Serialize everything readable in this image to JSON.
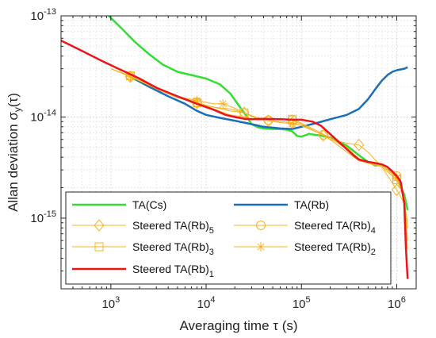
{
  "chart_data": {
    "type": "line",
    "xscale": "log",
    "yscale": "log",
    "xlim": [
      300,
      1600000
    ],
    "ylim": [
      2e-16,
      1e-13
    ],
    "xlabel": "Averaging time τ (s)",
    "ylabel": "Allan deviation σ",
    "ylabel_sub": "y",
    "ylabel_suffix": "(τ)",
    "x_ticks": [
      {
        "value": 1000,
        "base": "10",
        "exp": "3"
      },
      {
        "value": 10000,
        "base": "10",
        "exp": "4"
      },
      {
        "value": 100000,
        "base": "10",
        "exp": "5"
      },
      {
        "value": 1000000,
        "base": "10",
        "exp": "6"
      }
    ],
    "y_ticks": [
      {
        "value": 1e-13,
        "base": "10",
        "exp": "-13"
      },
      {
        "value": 1e-14,
        "base": "10",
        "exp": "-14"
      },
      {
        "value": 1e-15,
        "base": "10",
        "exp": "-15"
      }
    ],
    "grid": true,
    "legend_placement": "bottom-left",
    "series": [
      {
        "name": "TA(Cs)",
        "color": "#33dd33",
        "marker": "none",
        "x": [
          950,
          1300,
          1800,
          2500,
          3500,
          5000,
          7000,
          10000,
          14000,
          18000,
          22000,
          26000,
          30000,
          35000,
          40000,
          50000,
          60000,
          70000,
          80000,
          90000,
          100000,
          120000,
          150000,
          200000,
          300000,
          400000,
          500000,
          600000,
          700000,
          800000,
          1000000,
          1200000,
          1300000
        ],
        "y": [
          1e-13,
          7.5e-14,
          5.5e-14,
          4.2e-14,
          3.3e-14,
          2.8e-14,
          2.6e-14,
          2.4e-14,
          2.1e-14,
          1.7e-14,
          1.3e-14,
          1.05e-14,
          8.5e-15,
          7.9e-15,
          7.7e-15,
          7.6e-15,
          7.6e-15,
          7.5e-15,
          7.2e-15,
          6.5e-15,
          6.4e-15,
          6.8e-15,
          6.6e-15,
          6.3e-15,
          5.2e-15,
          4.2e-15,
          3.6e-15,
          3.3e-15,
          3.4e-15,
          3.2e-15,
          2.5e-15,
          1.7e-15,
          1.2e-15
        ]
      },
      {
        "name": "TA(Rb)",
        "color": "#1a6fb8",
        "marker": "none",
        "x": [
          1600,
          2500,
          4000,
          6000,
          8000,
          10000,
          14000,
          20000,
          30000,
          40000,
          60000,
          80000,
          100000,
          150000,
          200000,
          300000,
          400000,
          500000,
          600000,
          700000,
          800000,
          900000,
          1000000,
          1200000,
          1300000
        ],
        "y": [
          2.5e-14,
          2e-14,
          1.6e-14,
          1.35e-14,
          1.15e-14,
          1.05e-14,
          9.8e-15,
          9.2e-15,
          8.5e-15,
          8e-15,
          7.7e-15,
          7.6e-15,
          8e-15,
          8.8e-15,
          9.5e-15,
          1.05e-14,
          1.2e-14,
          1.5e-14,
          1.9e-14,
          2.3e-14,
          2.6e-14,
          2.8e-14,
          2.9e-14,
          3e-14,
          3.1e-14
        ]
      },
      {
        "name": "Steered TA(Rb)",
        "sub": "5",
        "color": "#f5b324",
        "marker": "diamond",
        "x": [
          1000,
          1600,
          3000,
          5000,
          8000,
          12000,
          18000,
          25000,
          35000,
          45000,
          60000,
          80000,
          100000,
          150000,
          200000,
          300000,
          400000,
          500000,
          700000,
          1000000,
          1200000,
          1300000
        ],
        "y": [
          3e-14,
          2.5e-14,
          1.9e-14,
          1.55e-14,
          1.38e-14,
          1.25e-14,
          1.15e-14,
          1.1e-14,
          9.5e-15,
          9.2e-15,
          9e-15,
          8.8e-15,
          8.2e-15,
          7e-15,
          6e-15,
          5.5e-15,
          5.3e-15,
          4.5e-15,
          3.2e-15,
          1.9e-15,
          1.4e-15,
          9e-16
        ],
        "marker_x": [
          1600,
          8000,
          25000,
          45000,
          80000,
          170000,
          400000,
          1000000
        ]
      },
      {
        "name": "Steered TA(Rb)",
        "sub": "4",
        "color": "#f5b324",
        "marker": "circle",
        "x": [
          1000,
          1600,
          3000,
          5000,
          8000,
          12000,
          18000,
          25000,
          35000,
          45000,
          60000,
          80000,
          100000,
          150000,
          200000,
          300000,
          400000,
          500000,
          700000,
          1000000,
          1200000,
          1300000
        ],
        "y": [
          3e-14,
          2.55e-14,
          1.95e-14,
          1.6e-14,
          1.4e-14,
          1.2e-14,
          1.05e-14,
          1e-14,
          9.3e-15,
          9.3e-15,
          9.5e-15,
          9.3e-15,
          8.5e-15,
          7e-15,
          6.3e-15,
          5e-15,
          3.9e-15,
          3.5e-15,
          3.3e-15,
          2.6e-15,
          1.5e-15,
          5e-16
        ],
        "marker_x": [
          1600,
          8000,
          45000,
          80000,
          170000,
          1000000
        ]
      },
      {
        "name": "Steered TA(Rb)",
        "sub": "3",
        "color": "#f5b324",
        "marker": "square",
        "x": [
          1000,
          1600,
          3000,
          5000,
          8000,
          12000,
          18000,
          25000,
          35000,
          45000,
          60000,
          80000,
          100000,
          150000,
          200000,
          300000,
          400000,
          500000,
          700000,
          1000000,
          1200000,
          1300000
        ],
        "y": [
          3e-14,
          2.55e-14,
          1.9e-14,
          1.55e-14,
          1.38e-14,
          1.25e-14,
          1.2e-14,
          1.1e-14,
          9.8e-15,
          9.5e-15,
          9.6e-15,
          9.5e-15,
          8.7e-15,
          7.2e-15,
          6.2e-15,
          4.8e-15,
          3.9e-15,
          3.5e-15,
          3.2e-15,
          2.4e-15,
          1.6e-15,
          6e-16
        ],
        "marker_x": [
          1600,
          8000,
          25000,
          80000,
          1000000
        ]
      },
      {
        "name": "Steered TA(Rb)",
        "sub": "2",
        "color": "#f5b324",
        "marker": "star",
        "x": [
          1000,
          1600,
          3000,
          5000,
          8000,
          12000,
          15000,
          20000,
          25000,
          35000,
          45000,
          60000,
          80000,
          100000,
          150000,
          200000,
          300000,
          400000,
          500000,
          700000,
          1000000,
          1200000,
          1300000
        ],
        "y": [
          3e-14,
          2.5e-14,
          1.95e-14,
          1.6e-14,
          1.45e-14,
          1.35e-14,
          1.35e-14,
          1.22e-14,
          1.1e-14,
          9.5e-15,
          9.2e-15,
          8.8e-15,
          8.6e-15,
          8.2e-15,
          7e-15,
          6e-15,
          4.5e-15,
          3.7e-15,
          3.5e-15,
          3.3e-15,
          2.5e-15,
          1.6e-15,
          8e-16
        ],
        "marker_x": [
          1600,
          8000,
          15000,
          80000,
          1000000
        ]
      },
      {
        "name": "Steered TA(Rb)",
        "sub": "1",
        "color": "#e8161b",
        "marker": "none",
        "x": [
          300,
          500,
          800,
          1200,
          2000,
          3000,
          5000,
          8000,
          12000,
          16000,
          20000,
          25000,
          30000,
          40000,
          60000,
          80000,
          100000,
          130000,
          160000,
          200000,
          250000,
          300000,
          350000,
          400000,
          500000,
          600000,
          700000,
          800000,
          900000,
          1000000,
          1100000,
          1200000,
          1250000,
          1300000
        ],
        "y": [
          5.7e-14,
          4.5e-14,
          3.6e-14,
          3e-14,
          2.4e-14,
          1.95e-14,
          1.6e-14,
          1.35e-14,
          1.18e-14,
          1.05e-14,
          1e-14,
          9.6e-15,
          9.5e-15,
          9.6e-15,
          9.5e-15,
          9.4e-15,
          9.4e-15,
          9e-15,
          8.2e-15,
          6.8e-15,
          5.6e-15,
          4.8e-15,
          4.2e-15,
          3.8e-15,
          3.6e-15,
          3.5e-15,
          3.4e-15,
          3.2e-15,
          2.9e-15,
          2.6e-15,
          2.3e-15,
          1.4e-15,
          5e-16,
          2.5e-16
        ]
      }
    ]
  }
}
